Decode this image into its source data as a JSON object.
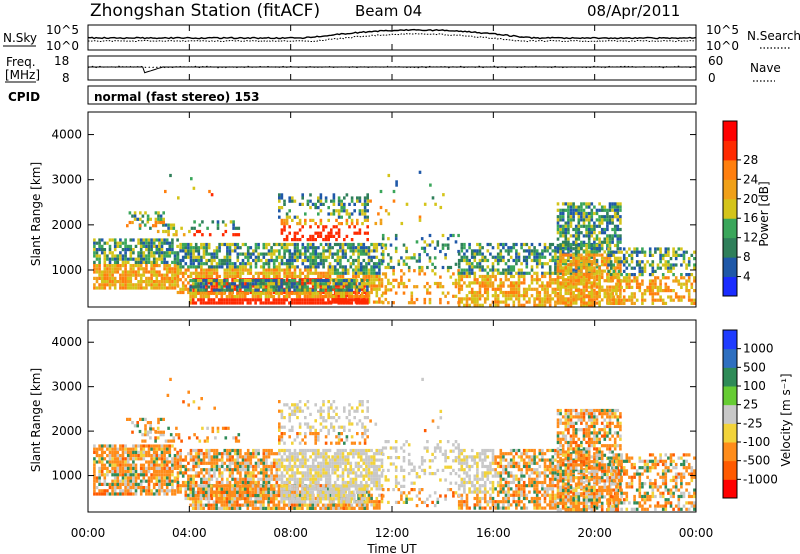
{
  "header": {
    "station": "Zhongshan Station (fitACF)",
    "beam": "Beam 04",
    "date": "08/Apr/2011"
  },
  "top_panels": {
    "noise": {
      "left_label": "N.Sky",
      "right_label": "N.Search",
      "left_ticks": [
        "10^5",
        "10^0"
      ],
      "right_ticks": [
        "10^5",
        "10^0"
      ]
    },
    "freq": {
      "left_label_1": "Freq.",
      "left_label_2": "[MHz]",
      "left_ticks": [
        "18",
        "8"
      ],
      "right_label": "Nave",
      "right_ticks": [
        "60",
        "0"
      ]
    },
    "cpid_label": "CPID",
    "cpid_text": "normal (fast stereo) 153"
  },
  "chart_data": [
    {
      "type": "heatmap",
      "quantity": "power",
      "ylabel": "Slant Range [km]",
      "xlabel": "",
      "xlim": [
        "00:00",
        "00:00"
      ],
      "ylim": [
        180,
        4500
      ],
      "y_ticks": [
        1000,
        2000,
        3000,
        4000
      ],
      "colorbar": {
        "label": "Power [dB]",
        "ticks": [
          4,
          8,
          12,
          16,
          20,
          24,
          28
        ],
        "colors": [
          "#1a2cff",
          "#1f58a8",
          "#2f7f5a",
          "#3aa65a",
          "#d4c41a",
          "#f0a018",
          "#ff7f0e",
          "#ff2a00",
          "#ff0000"
        ]
      }
    },
    {
      "type": "heatmap",
      "quantity": "velocity",
      "ylabel": "Slant Range [km]",
      "xlabel": "Time UT",
      "x_ticks": [
        "00:00",
        "04:00",
        "08:00",
        "12:00",
        "16:00",
        "20:00",
        "00:00"
      ],
      "ylim": [
        180,
        4500
      ],
      "y_ticks": [
        1000,
        2000,
        3000,
        4000
      ],
      "colorbar": {
        "label": "Velocity [m s⁻¹]",
        "ticks": [
          "1000",
          "500",
          "100",
          "25",
          "-25",
          "-100",
          "-500",
          "-1000"
        ],
        "colors": [
          "#1f3cff",
          "#2e6fc0",
          "#2e8b57",
          "#66cc33",
          "#c8c8c8",
          "#f2d33a",
          "#ff8c1a",
          "#ff5a00",
          "#ff0000"
        ]
      }
    }
  ],
  "colors": {
    "axis": "#000000",
    "gate_gray": "#c0c0c0"
  }
}
